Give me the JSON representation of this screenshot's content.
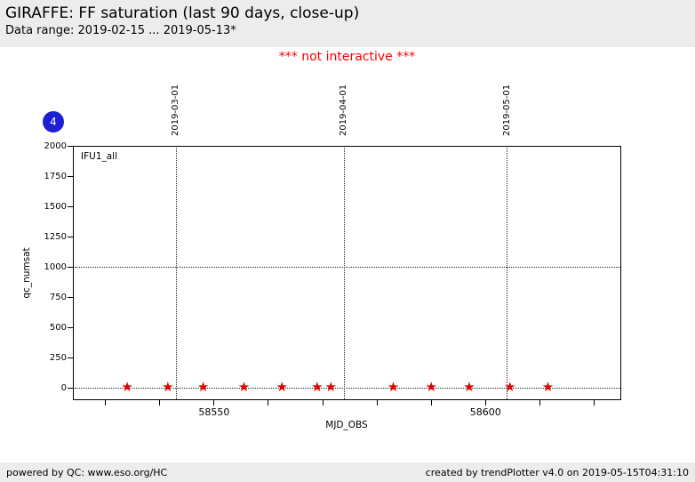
{
  "header": {
    "title": "GIRAFFE: FF saturation (last 90 days, close-up)",
    "subtitle": "Data range: 2019-02-15 ... 2019-05-13*"
  },
  "notice": {
    "text": "*** not interactive ***",
    "color": "#ff0000"
  },
  "badge": {
    "value": "4",
    "color": "#1e1ed2"
  },
  "footer": {
    "left": "powered by QC: www.eso.org/HC",
    "right": "created by trendPlotter v4.0 on 2019-05-15T04:31:10"
  },
  "chart_data": {
    "type": "scatter",
    "title": "GIRAFFE: FF saturation (last 90 days, close-up)",
    "subtitle": "Data range: 2019-02-15 ... 2019-05-13*",
    "xlabel": "MJD_OBS",
    "ylabel": "qc_numsat",
    "xlim": [
      58524,
      58625
    ],
    "ylim": [
      -100,
      2000
    ],
    "x_major_ticks": [
      58550,
      58600
    ],
    "x_minor_ticks": [
      58530,
      58540,
      58550,
      58560,
      58570,
      58580,
      58590,
      58600,
      58610,
      58620
    ],
    "y_ticks": [
      0,
      250,
      500,
      750,
      1000,
      1250,
      1500,
      1750,
      2000
    ],
    "h_gridlines": [
      0,
      1000
    ],
    "date_gridlines": [
      {
        "label": "2019-03-01",
        "mjd": 58543
      },
      {
        "label": "2019-04-01",
        "mjd": 58574
      },
      {
        "label": "2019-05-01",
        "mjd": 58604
      }
    ],
    "legend": {
      "label": "IFU1_all",
      "position": "upper-left"
    },
    "grid": "dotted",
    "marker_glyph": "★",
    "series": [
      {
        "name": "IFU1_all",
        "marker": "star",
        "color": "#dd0000",
        "points": [
          {
            "x": 58534.0,
            "y": 0
          },
          {
            "x": 58541.5,
            "y": 0
          },
          {
            "x": 58548.0,
            "y": 0
          },
          {
            "x": 58555.5,
            "y": 0
          },
          {
            "x": 58562.5,
            "y": 0
          },
          {
            "x": 58569.0,
            "y": 0
          },
          {
            "x": 58571.5,
            "y": 0
          },
          {
            "x": 58583.0,
            "y": 0
          },
          {
            "x": 58590.0,
            "y": 0
          },
          {
            "x": 58597.0,
            "y": 0
          },
          {
            "x": 58604.5,
            "y": 0
          },
          {
            "x": 58611.5,
            "y": 0
          }
        ]
      }
    ]
  }
}
